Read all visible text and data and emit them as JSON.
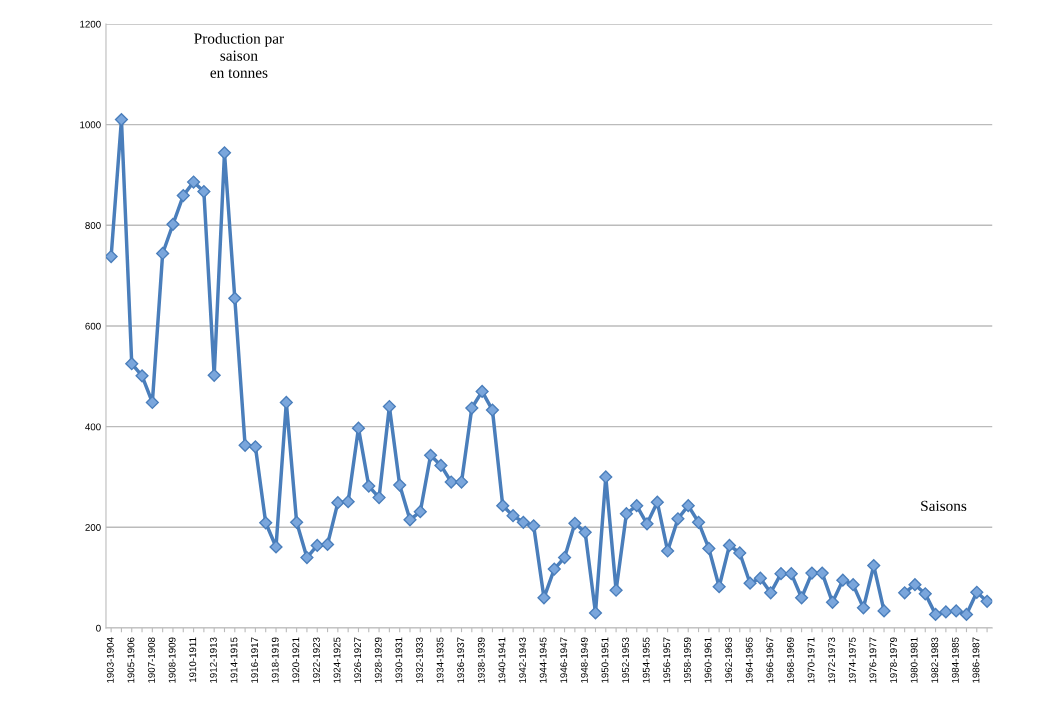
{
  "chart_data": {
    "type": "line",
    "categories": [
      "1903-1904",
      null,
      "1905-1906",
      null,
      "1907-1908",
      null,
      "1908-1909",
      null,
      "1910-1911",
      null,
      "1912-1913",
      null,
      "1914-1915",
      null,
      "1916-1917",
      null,
      "1918-1919",
      null,
      "1920-1921",
      null,
      "1922-1923",
      null,
      "1924-1925",
      null,
      "1926-1927",
      null,
      "1928-1929",
      null,
      "1930-1931",
      null,
      "1932-1933",
      null,
      "1934-1935",
      null,
      "1936-1937",
      null,
      "1938-1939",
      null,
      "1940-1941",
      null,
      "1942-1943",
      null,
      "1944-1945",
      null,
      "1946-1947",
      null,
      "1948-1949",
      null,
      "1950-1951",
      null,
      "1952-1953",
      null,
      "1954-1955",
      null,
      "1956-1957",
      null,
      "1958-1959",
      null,
      "1960-1961",
      null,
      "1962-1963",
      null,
      "1964-1965",
      null,
      "1966-1967",
      null,
      "1968-1969",
      null,
      "1970-1971",
      null,
      "1972-1973",
      null,
      "1974-1975",
      null,
      "1976-1977",
      null,
      "1978-1979",
      null,
      "1980-1981",
      null,
      "1982-1983",
      null,
      "1984-1985",
      null,
      "1986-1987",
      null
    ],
    "series": [
      {
        "color": "#4a7ebb",
        "values": [
          738,
          1010,
          525,
          501,
          448,
          744,
          802,
          859,
          886,
          867,
          502,
          944,
          655,
          363,
          360,
          209,
          161,
          448,
          210,
          140,
          164,
          166,
          249,
          251,
          397,
          282,
          259,
          440,
          284,
          215,
          231,
          343,
          323,
          290,
          290,
          437,
          470,
          433,
          243,
          223,
          210,
          203,
          60,
          117,
          140,
          208,
          190,
          30,
          300,
          75,
          227,
          243,
          207,
          250,
          153,
          217,
          243,
          210,
          158,
          82,
          164,
          149,
          89,
          99,
          70,
          108,
          108,
          60,
          109,
          109,
          51,
          95,
          86,
          40,
          124,
          34,
          null,
          70,
          86,
          68,
          27,
          32,
          34,
          27,
          71,
          53
        ]
      }
    ],
    "ylim": [
      0,
      1200
    ],
    "yticks": [
      0,
      200,
      400,
      600,
      800,
      1000,
      1200
    ],
    "grid": "y",
    "marker": "diamond",
    "line_style": "solid",
    "annotations": [
      "Production par\nsaison\nen tonnes",
      "Saisons"
    ]
  }
}
